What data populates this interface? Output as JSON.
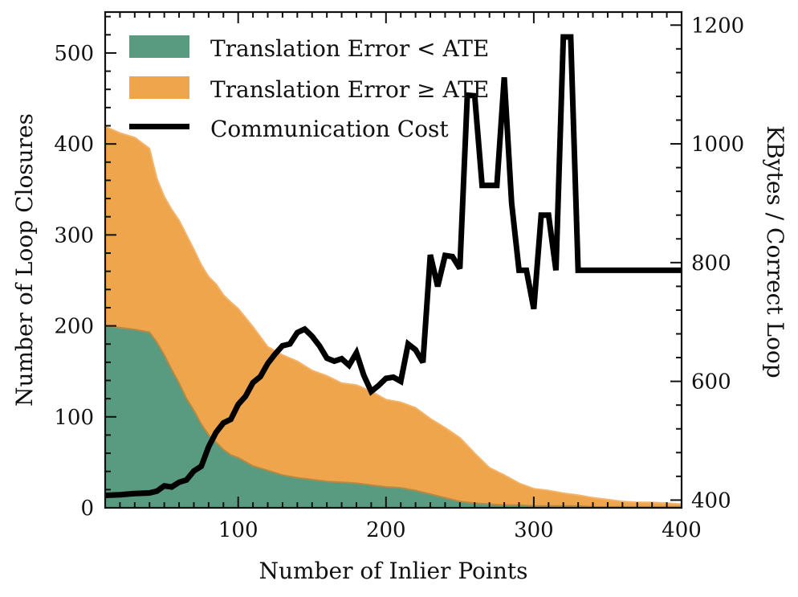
{
  "chart_data": {
    "type": "area",
    "xlabel": "Number of Inlier Points",
    "ylabel": "Number of Loop Closures",
    "y2label": "KBytes / Correct Loop",
    "xlim": [
      10,
      400
    ],
    "ylim": [
      0,
      545
    ],
    "y2lim": [
      387,
      1222
    ],
    "xticks": [
      100,
      200,
      300,
      400
    ],
    "yticks": [
      0,
      100,
      200,
      300,
      400,
      500
    ],
    "y2ticks": [
      400,
      600,
      800,
      1000,
      1200
    ],
    "legend_position": "top-left",
    "colors": {
      "below_ate": "#589b80",
      "above_ate": "#efa54b",
      "cost": "#000000"
    },
    "x": [
      10,
      20,
      30,
      40,
      45,
      50,
      55,
      60,
      65,
      70,
      75,
      80,
      85,
      90,
      95,
      100,
      110,
      120,
      130,
      140,
      150,
      160,
      170,
      180,
      190,
      200,
      210,
      220,
      230,
      240,
      250,
      260,
      270,
      280,
      290,
      300,
      310,
      320,
      330,
      340,
      350,
      360,
      370,
      380,
      390,
      400
    ],
    "series": [
      {
        "name": "Translation Error < ATE",
        "kind": "stacked-area",
        "values": [
          200,
          198,
          196,
          193,
          182,
          168,
          152,
          137,
          120,
          107,
          92,
          80,
          72,
          64,
          58,
          55,
          46,
          41,
          36,
          33,
          31,
          29,
          28,
          27,
          25,
          23,
          22,
          19,
          15,
          11,
          7,
          5,
          4,
          3,
          3,
          2,
          2,
          2,
          2,
          1,
          1,
          1,
          1,
          1,
          1,
          1
        ]
      },
      {
        "name": "Translation Error ≥ ATE",
        "kind": "stacked-area",
        "values": [
          219,
          214,
          211,
          202,
          180,
          174,
          176,
          179,
          180,
          177,
          175,
          174,
          174,
          170,
          168,
          164,
          153,
          136,
          132,
          128,
          120,
          116,
          109,
          108,
          103,
          96,
          94,
          91,
          83,
          77,
          70,
          55,
          40,
          33,
          24,
          19,
          17,
          14,
          12,
          10,
          8,
          6,
          5,
          5,
          4,
          3
        ]
      },
      {
        "name": "Communication Cost",
        "kind": "line",
        "axis": "right",
        "x": [
          10,
          20,
          25,
          30,
          40,
          45,
          50,
          55,
          60,
          65,
          70,
          75,
          80,
          85,
          90,
          95,
          100,
          105,
          110,
          115,
          120,
          125,
          130,
          135,
          140,
          145,
          150,
          155,
          160,
          165,
          170,
          175,
          180,
          185,
          190,
          195,
          200,
          205,
          210,
          215,
          220,
          225,
          230,
          235,
          240,
          245,
          250,
          255,
          260,
          265,
          270,
          275,
          280,
          285,
          290,
          295,
          300,
          305,
          310,
          315,
          320,
          325,
          330,
          335,
          340,
          345,
          350,
          355,
          360,
          365,
          370,
          375,
          380,
          385,
          390,
          395,
          400
        ],
        "values": [
          408,
          409,
          410,
          411,
          412,
          415,
          424,
          422,
          430,
          434,
          449,
          457,
          490,
          514,
          530,
          536,
          561,
          575,
          598,
          608,
          630,
          646,
          660,
          663,
          682,
          688,
          676,
          660,
          639,
          634,
          638,
          627,
          648,
          610,
          583,
          593,
          605,
          607,
          600,
          663,
          653,
          632,
          813,
          760,
          812,
          810,
          790,
          1082,
          1081,
          930,
          930,
          930,
          1112,
          900,
          787,
          787,
          722,
          880,
          880,
          787,
          1180,
          1180,
          787,
          787,
          787,
          787,
          787,
          787,
          787,
          787,
          787,
          787,
          787,
          787,
          787,
          787,
          787
        ]
      }
    ]
  }
}
